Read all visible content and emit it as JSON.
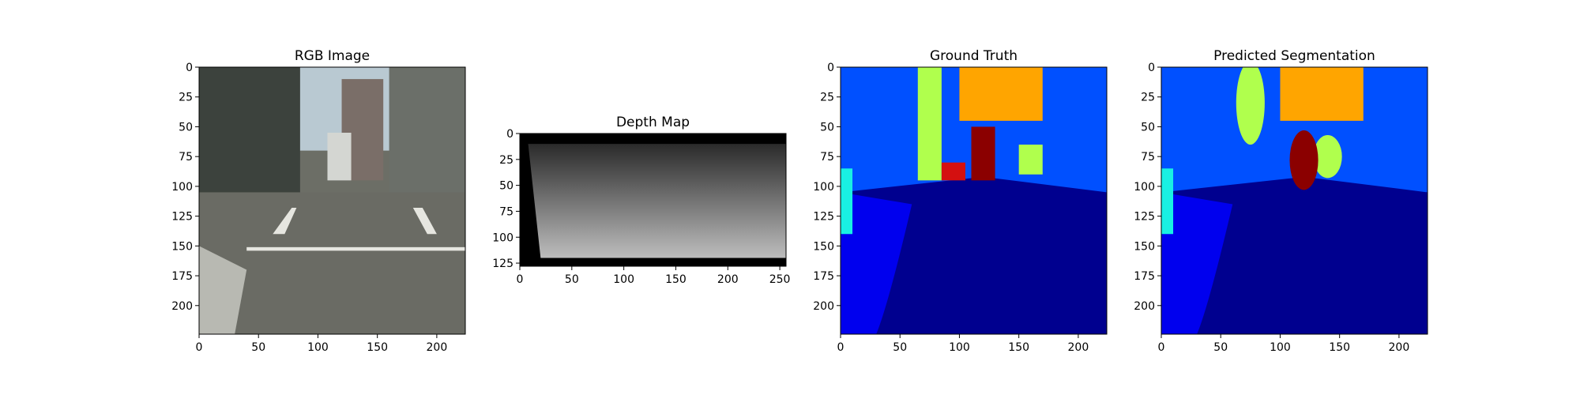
{
  "colors": {
    "sky": "#b9c9d2",
    "building_dark": "#3c423d",
    "building_mid": "#6b6f69",
    "road": "#6c6e66",
    "road_line": "#e6e6e0",
    "depth_near": "#bdbdbd",
    "depth_far": "#2a2a2a",
    "seg_road": "#00008f",
    "seg_sidewalk": "#0000ee",
    "seg_building": "#0050ff",
    "seg_vegetation": "#b0ff4d",
    "seg_sky": "#ffa500",
    "seg_car": "#8b0000",
    "seg_person": "#d41010",
    "seg_pole": "#19f0e3"
  },
  "chart_data": [
    {
      "type": "image",
      "title": "RGB Image",
      "image_size": [
        224,
        224
      ],
      "xlim": [
        0,
        224
      ],
      "ylim": [
        224,
        0
      ],
      "xticks": [
        0,
        50,
        100,
        150,
        200
      ],
      "yticks": [
        0,
        25,
        50,
        75,
        100,
        125,
        150,
        175,
        200
      ],
      "content": "street-scene"
    },
    {
      "type": "image",
      "title": "Depth Map",
      "image_size": [
        256,
        128
      ],
      "xlim": [
        0,
        256
      ],
      "ylim": [
        128,
        0
      ],
      "xticks": [
        0,
        50,
        100,
        150,
        200,
        250
      ],
      "yticks": [
        0,
        25,
        50,
        75,
        100,
        125
      ],
      "content": "depth"
    },
    {
      "type": "image",
      "title": "Ground Truth",
      "image_size": [
        224,
        224
      ],
      "xlim": [
        0,
        224
      ],
      "ylim": [
        224,
        0
      ],
      "xticks": [
        0,
        50,
        100,
        150,
        200
      ],
      "yticks": [
        0,
        25,
        50,
        75,
        100,
        125,
        150,
        175,
        200
      ],
      "content": "segmentation"
    },
    {
      "type": "image",
      "title": "Predicted Segmentation",
      "image_size": [
        224,
        224
      ],
      "xlim": [
        0,
        224
      ],
      "ylim": [
        224,
        0
      ],
      "xticks": [
        0,
        50,
        100,
        150,
        200
      ],
      "yticks": [
        0,
        25,
        50,
        75,
        100,
        125,
        150,
        175,
        200
      ],
      "content": "segmentation-smooth"
    }
  ]
}
